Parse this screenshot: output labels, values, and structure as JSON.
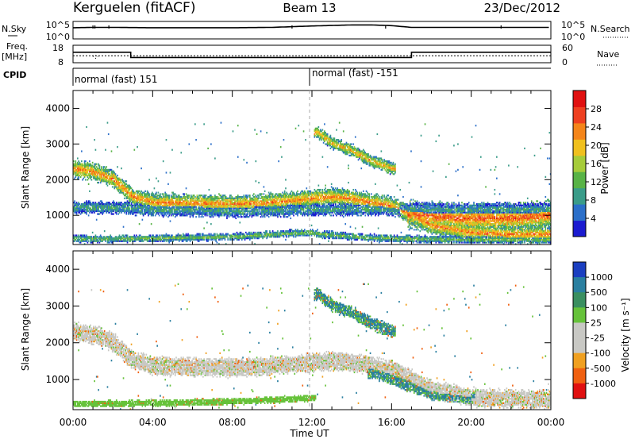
{
  "header": {
    "station": "Kerguelen (fitACF)",
    "beam": "Beam 13",
    "date": "23/Dec/2012"
  },
  "params": {
    "nsky_label": "N.Sky",
    "nsearch_label": "N.Search",
    "freq_label_1": "Freq.",
    "freq_label_2": "[MHz]",
    "nave_label": "Nave",
    "cpid_label": "CPID",
    "nsky_ticks": [
      "10^5",
      "10^0"
    ],
    "nsearch_ticks": [
      "10^5",
      "10^0"
    ],
    "freq_ticks": [
      "18",
      "8"
    ],
    "nave_ticks": [
      "60",
      "0"
    ],
    "cpid_segments": [
      {
        "label": "normal (fast) 151",
        "start_hour": 0
      },
      {
        "label": "normal (fast) -151",
        "start_hour": 12
      }
    ]
  },
  "time_axis": {
    "xlabel": "Time UT",
    "ticks": [
      "00:00",
      "04:00",
      "08:00",
      "12:00",
      "16:00",
      "20:00",
      "00:00"
    ],
    "hours": [
      0,
      4,
      8,
      12,
      16,
      20,
      24
    ]
  },
  "chart_data": [
    {
      "type": "line",
      "name": "nsky-nsearch-panel",
      "x_range_hours": [
        0,
        24
      ],
      "series": [
        {
          "name": "N.Sky",
          "x": [
            0,
            1,
            2,
            4,
            8,
            10,
            11,
            12,
            14,
            15,
            16,
            17,
            20,
            24
          ],
          "y": [
            3.2,
            3.3,
            3.3,
            3.2,
            3.2,
            3.3,
            3.5,
            3.7,
            4.0,
            4.0,
            3.8,
            3.3,
            3.3,
            3.3
          ]
        }
      ]
    },
    {
      "type": "line",
      "name": "frequency-nave-panel",
      "x_range_hours": [
        0,
        24
      ],
      "series": [
        {
          "name": "Freq.",
          "x": [
            0,
            2.9,
            2.9,
            17,
            17,
            24
          ],
          "y": [
            14,
            14,
            11,
            11,
            14,
            14
          ]
        },
        {
          "name": "Nave",
          "x": [
            0,
            24
          ],
          "y": [
            24,
            24
          ]
        }
      ]
    },
    {
      "type": "heatmap",
      "name": "power-panel",
      "ylabel": "Slant Range [km]",
      "ylim": [
        180,
        4500
      ],
      "yticks": [
        1000,
        2000,
        3000,
        4000
      ],
      "colorbar": {
        "label": "Power [dB]",
        "ticks": [
          4,
          8,
          12,
          16,
          20,
          24,
          28
        ],
        "range": [
          0,
          32
        ],
        "colors": [
          "#1b1bd0",
          "#2b6fc9",
          "#3a9c89",
          "#58b346",
          "#a6cc3a",
          "#f0c01e",
          "#f4851a",
          "#ee4020",
          "#e01010"
        ]
      },
      "bands": [
        {
          "t": [
            0,
            1,
            2,
            3,
            4,
            6,
            8,
            10,
            12,
            13,
            14,
            16,
            17,
            18,
            20,
            22,
            24
          ],
          "r": [
            2300,
            2200,
            2000,
            1500,
            1350,
            1330,
            1300,
            1350,
            1450,
            1500,
            1450,
            1250,
            1000,
            700,
            500,
            450,
            450
          ],
          "w": 220,
          "p": 24
        },
        {
          "t": [
            0,
            2,
            4,
            8,
            12,
            16,
            24
          ],
          "r": [
            1200,
            1200,
            1150,
            1100,
            1150,
            1150,
            1150
          ],
          "w": 160,
          "p": 10
        },
        {
          "t": [
            0,
            3,
            4,
            8,
            10,
            12,
            12.5,
            15,
            17,
            20,
            24
          ],
          "r": [
            320,
            330,
            340,
            380,
            450,
            500,
            450,
            350,
            320,
            300,
            300
          ],
          "w": 90,
          "p": 14
        },
        {
          "t": [
            12.3,
            13,
            14,
            15,
            16
          ],
          "r": [
            3300,
            3000,
            2800,
            2500,
            2300
          ],
          "w": 150,
          "p": 22
        },
        {
          "t": [
            17,
            18,
            20,
            22,
            24
          ],
          "r": [
            1000,
            950,
            900,
            900,
            1000
          ],
          "w": 360,
          "p": 26
        }
      ]
    },
    {
      "type": "heatmap",
      "name": "velocity-panel",
      "ylabel": "Slant Range [km]",
      "ylim": [
        180,
        4500
      ],
      "yticks": [
        1000,
        2000,
        3000,
        4000
      ],
      "colorbar": {
        "label": "Velocity [m s⁻¹]",
        "ticks": [
          "1000",
          "500",
          "100",
          "25",
          "-25",
          "-100",
          "-500",
          "-1000"
        ],
        "colors": [
          "#1b3fc0",
          "#2a7fa0",
          "#3a8f60",
          "#66c23a",
          "#c8c8c4",
          "#c8c8c4",
          "#f0a020",
          "#f06010",
          "#e01010"
        ]
      },
      "bands": [
        {
          "t": [
            0,
            1,
            2,
            3,
            4,
            6,
            8,
            10,
            12,
            13,
            14,
            16,
            17,
            18,
            20,
            22,
            24
          ],
          "r": [
            2300,
            2200,
            2000,
            1500,
            1350,
            1330,
            1300,
            1350,
            1450,
            1500,
            1450,
            1250,
            1000,
            700,
            500,
            450,
            450
          ],
          "w": 220,
          "v": 0
        },
        {
          "t": [
            12.3,
            13,
            14,
            15,
            16
          ],
          "r": [
            3300,
            3000,
            2800,
            2500,
            2300
          ],
          "w": 150,
          "v": 110
        },
        {
          "t": [
            15,
            16,
            17,
            18,
            20
          ],
          "r": [
            1200,
            1000,
            800,
            600,
            500
          ],
          "w": 150,
          "v": 110
        },
        {
          "t": [
            0,
            3,
            6,
            9,
            12
          ],
          "r": [
            320,
            330,
            360,
            400,
            480
          ],
          "w": 80,
          "v": 60
        }
      ]
    }
  ]
}
